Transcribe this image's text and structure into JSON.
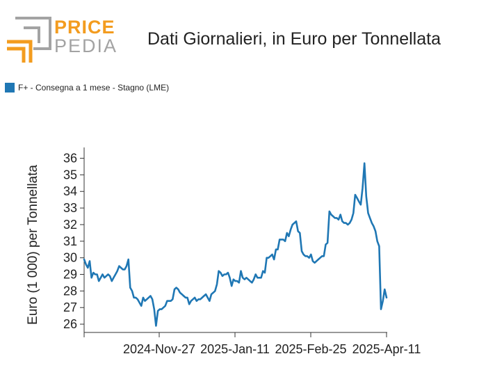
{
  "brand": {
    "top": "PRICE",
    "bottom": "PEDIA",
    "accent": "#f39c1f",
    "gray": "#a3a3a3"
  },
  "chart_data": {
    "type": "line",
    "title": "Dati Giornalieri, in Euro per Tonnellata",
    "ylabel": "Euro (1 000) per Tonnellata",
    "xlabel": "",
    "ylim": [
      25.5,
      36.4
    ],
    "yticks": [
      26,
      27,
      28,
      29,
      30,
      31,
      32,
      33,
      34,
      35,
      36
    ],
    "xtick_labels": [
      "2024-Nov-27",
      "2025-Jan-11",
      "2025-Feb-25",
      "2025-Apr-11"
    ],
    "legend": {
      "placement": "top-left"
    },
    "grid": false,
    "series": [
      {
        "name": "F+ - Consegna a 1 mese - Stagno (LME)",
        "color": "#1f77b4",
        "x_start": "2024-Oct-13",
        "values": [
          29.9,
          29.6,
          29.4,
          29.8,
          28.8,
          29.1,
          29.0,
          29.0,
          28.6,
          28.8,
          29.0,
          28.8,
          28.9,
          29.0,
          28.9,
          28.6,
          28.8,
          29.0,
          29.2,
          29.5,
          29.4,
          29.3,
          29.3,
          29.5,
          29.9,
          28.2,
          28.0,
          27.6,
          27.6,
          27.5,
          27.3,
          27.1,
          27.6,
          27.4,
          27.5,
          27.6,
          27.7,
          27.5,
          26.9,
          25.9,
          26.8,
          26.9,
          26.9,
          27.0,
          27.1,
          27.4,
          27.4,
          27.4,
          27.5,
          28.1,
          28.2,
          28.1,
          27.9,
          27.8,
          27.7,
          27.6,
          27.6,
          27.2,
          27.4,
          27.5,
          27.6,
          27.4,
          27.5,
          27.5,
          27.6,
          27.7,
          27.8,
          27.6,
          27.4,
          27.8,
          27.9,
          28.0,
          28.4,
          29.2,
          29.1,
          28.9,
          29.0,
          29.0,
          29.1,
          28.8,
          28.3,
          28.7,
          28.6,
          28.6,
          28.5,
          29.2,
          28.8,
          28.7,
          28.8,
          28.7,
          28.6,
          28.5,
          28.7,
          29.0,
          28.8,
          28.8,
          28.8,
          29.2,
          29.1,
          30.0,
          30.0,
          30.1,
          30.2,
          29.9,
          30.5,
          30.5,
          31.1,
          31.1,
          31.1,
          31.0,
          31.5,
          31.3,
          31.7,
          32.0,
          32.1,
          32.2,
          31.6,
          31.5,
          30.4,
          30.2,
          30.1,
          30.1,
          30.0,
          30.2,
          29.8,
          29.7,
          29.8,
          29.9,
          30.0,
          30.1,
          30.1,
          30.8,
          30.9,
          32.8,
          32.6,
          32.5,
          32.4,
          32.4,
          32.3,
          32.6,
          32.2,
          32.1,
          32.1,
          32.0,
          32.1,
          32.3,
          32.7,
          33.8,
          33.6,
          33.4,
          33.2,
          34.2,
          35.7,
          33.7,
          32.7,
          32.4,
          32.1,
          31.9,
          31.6,
          31.0,
          30.7,
          26.9,
          27.4,
          28.1,
          27.6
        ]
      }
    ]
  }
}
